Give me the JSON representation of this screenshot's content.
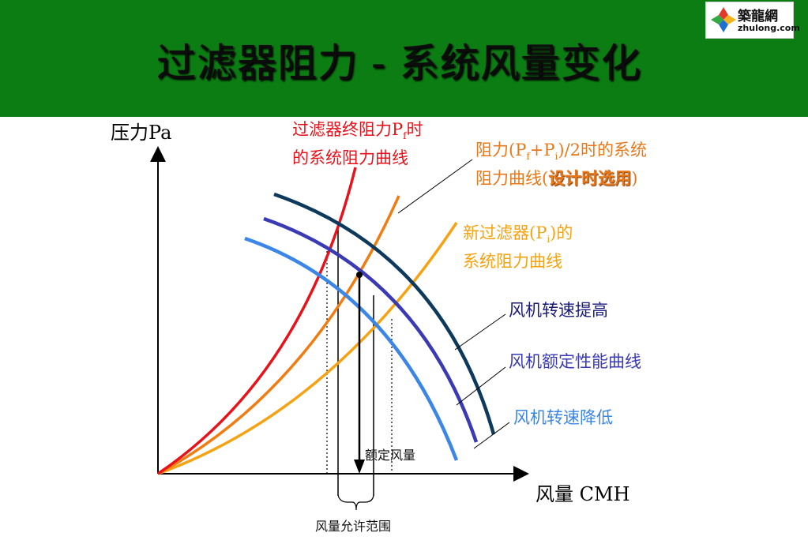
{
  "header": {
    "title": "过滤器阻力 - 系统风量变化",
    "logo_cn": "築龍網",
    "logo_en": "zhulong.com"
  },
  "axes": {
    "y_label": "压力Pa",
    "x_label": "风量 CMH"
  },
  "annotations": {
    "final_curve": {
      "l1_a": "过滤器终阻力P",
      "l1_sub": "f",
      "l1_b": "时",
      "line2": "的系统阻力曲线"
    },
    "design_curve": {
      "l1_a": "阻力(P",
      "l1_sub1": "f",
      "l1_b": "+P",
      "l1_sub2": "i",
      "l1_c": ")/2时的系统",
      "l2_a": "阻力曲线(",
      "l2_bold": "设计时选用",
      "l2_b": ")"
    },
    "new_curve": {
      "l1_a": "新过滤器(P",
      "l1_sub": "i",
      "l1_b": ")的",
      "line2": "系统阻力曲线"
    },
    "fan_up": "风机转速提高",
    "fan_rated": "风机额定性能曲线",
    "fan_down": "风机转速降低",
    "rated_flow": "额定风量",
    "allowed_range": "风量允许范围"
  },
  "colors": {
    "header_bg": "#0b7d12",
    "final_curve": "#e8121a",
    "design_curve": "#f07c12",
    "new_curve": "#f5a213",
    "fan_up": "#0d3a5c",
    "fan_rated": "#3a3ab5",
    "fan_down": "#3b86e6",
    "text_red": "#e8121a",
    "text_orange": "#e8781a",
    "text_navy": "#1a1a7a",
    "text_blue": "#3b86e6"
  }
}
